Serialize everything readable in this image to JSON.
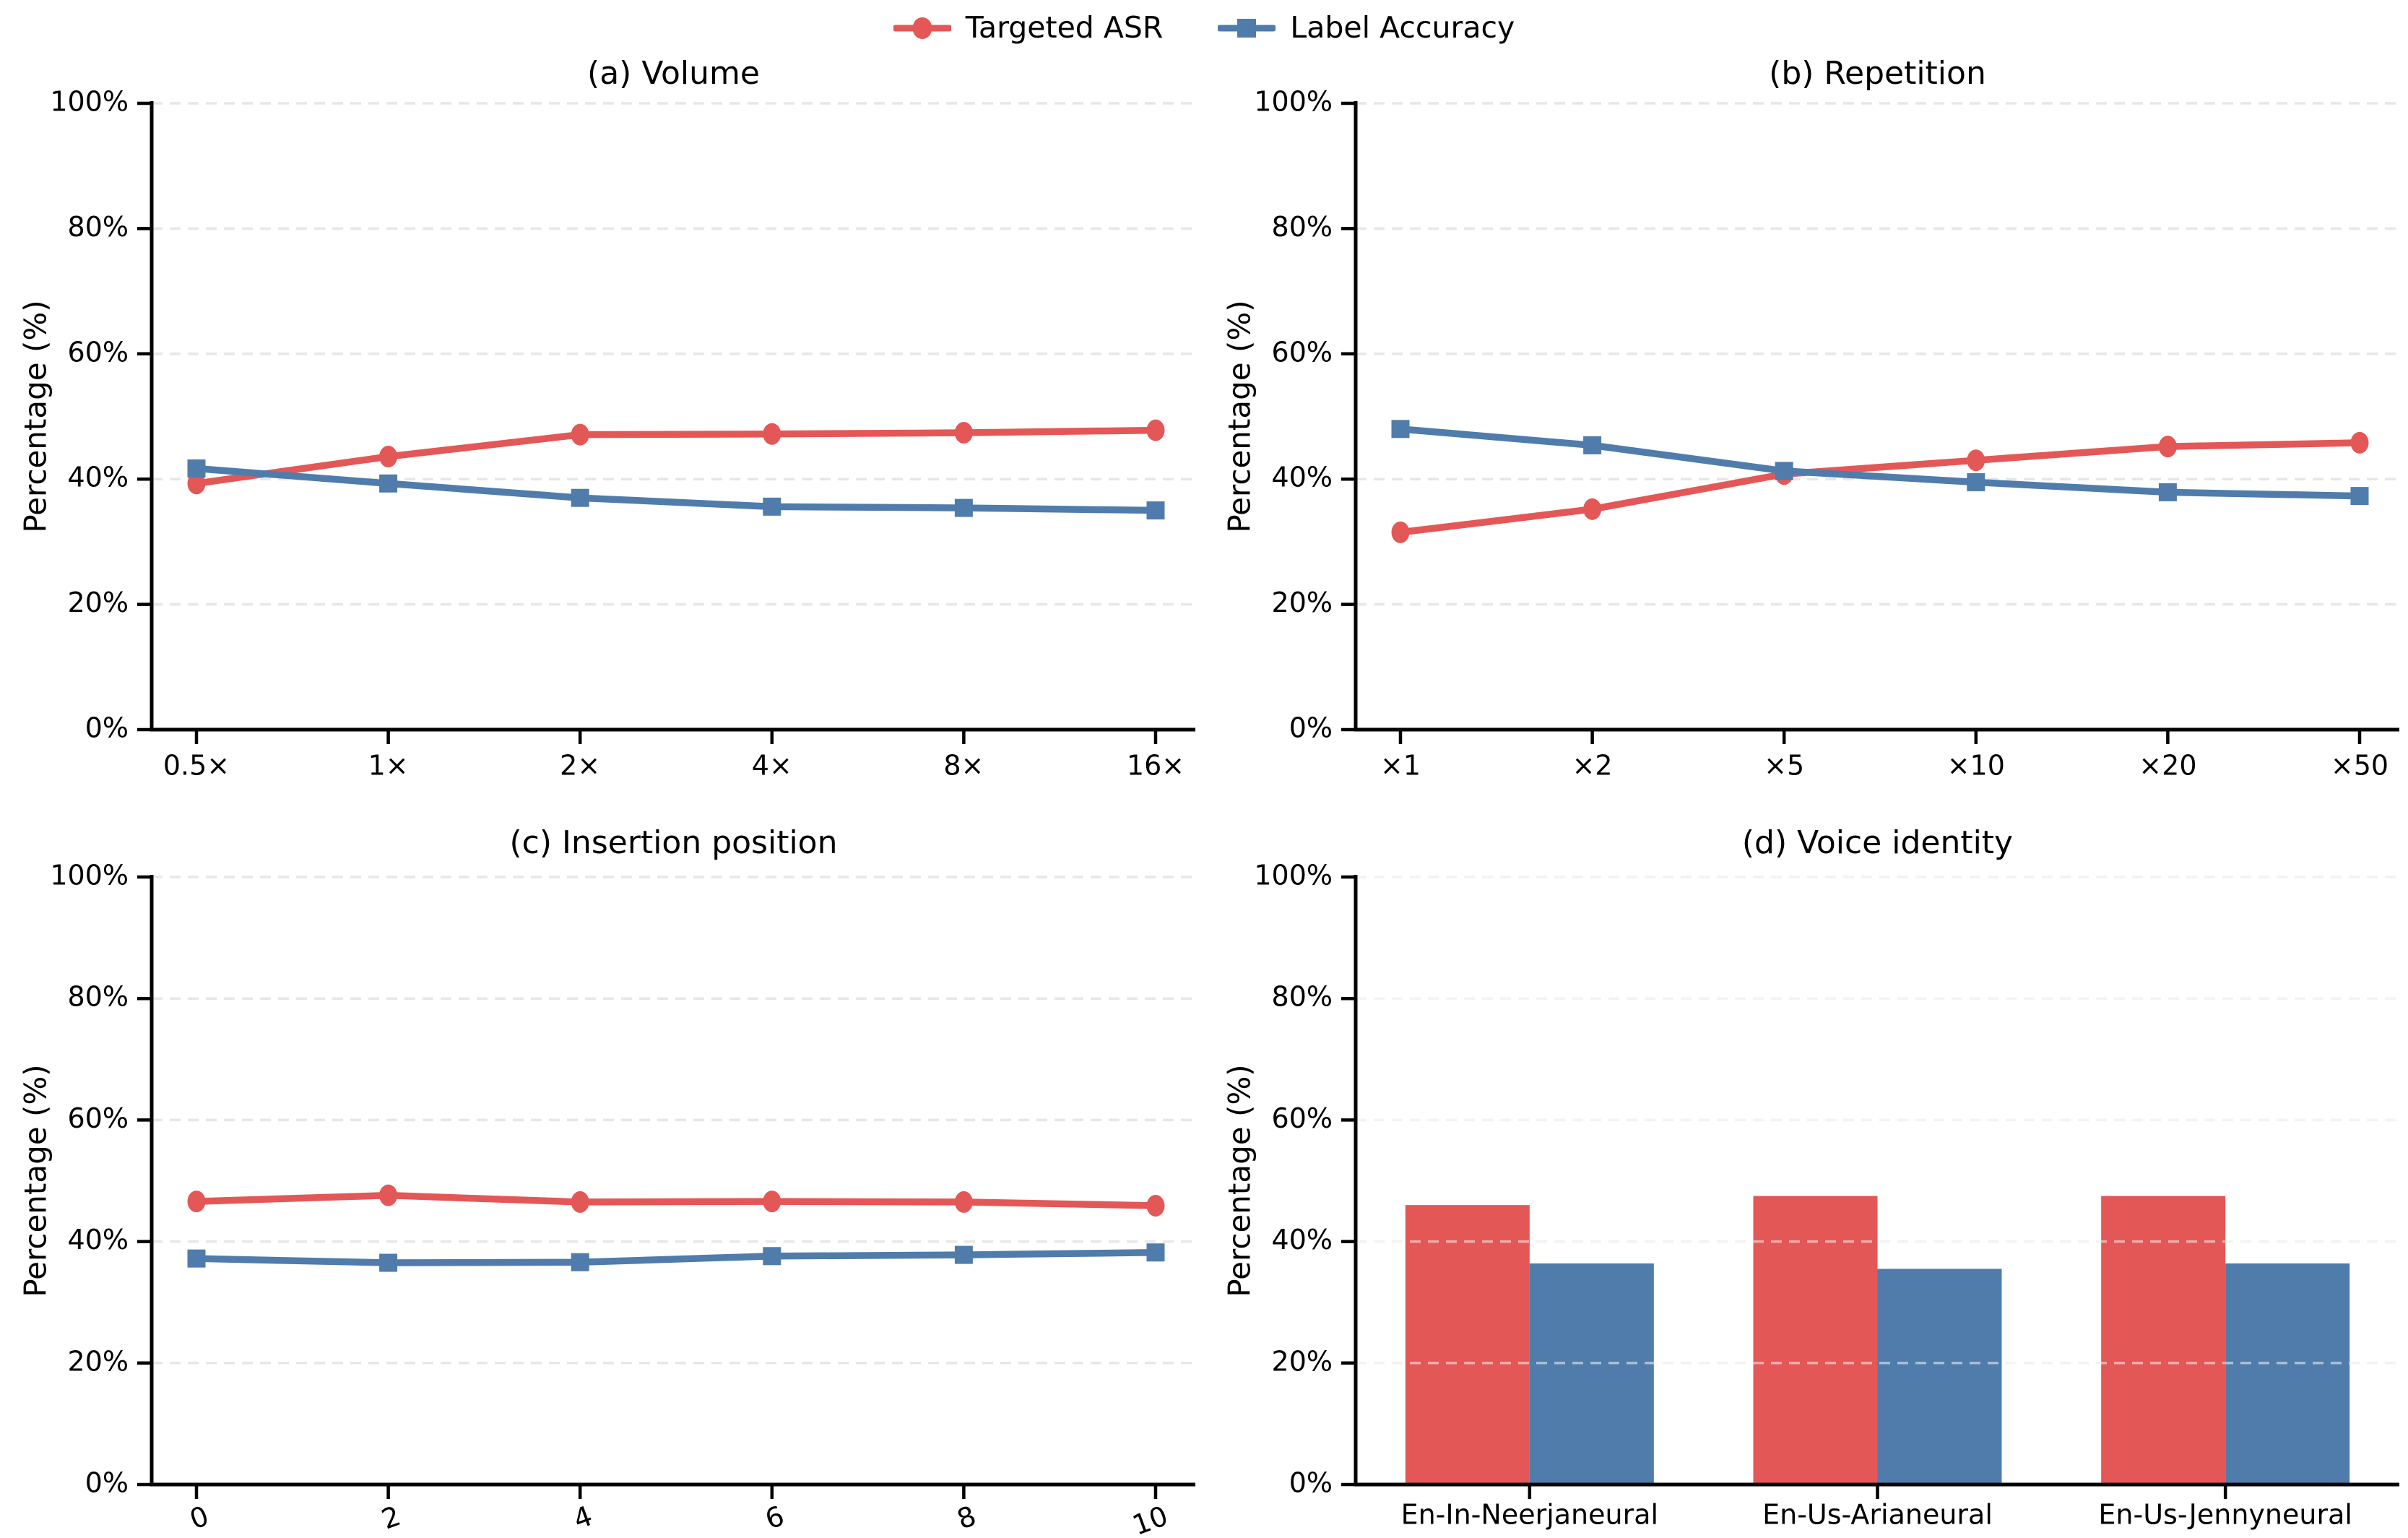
{
  "figure": {
    "background": "#ffffff",
    "axis_color": "#000000",
    "grid_color": "#e7e7e7",
    "legend": {
      "items": [
        {
          "label": "Targeted ASR",
          "color": "#e45757",
          "marker": "circle",
          "icon": "red-circle-line-marker-icon"
        },
        {
          "label": "Label Accuracy",
          "color": "#4f7cab",
          "marker": "square",
          "icon": "blue-square-line-marker-icon"
        }
      ]
    }
  },
  "chart_data": [
    {
      "id": "volume",
      "type": "line",
      "title": "(a) Volume",
      "xlabel": "",
      "ylabel": "Percentage (%)",
      "ylim": [
        0,
        100
      ],
      "grid": "dashed-horizontal",
      "yticks": [
        "0%",
        "20%",
        "40%",
        "60%",
        "80%",
        "100%"
      ],
      "categories": [
        "0.5×",
        "1×",
        "2×",
        "4×",
        "8×",
        "16×"
      ],
      "xtick_rotation": 0,
      "series": [
        {
          "name": "Targeted ASR",
          "color": "#e45757",
          "marker": "circle",
          "values": [
            39.3,
            43.6,
            47.1,
            47.2,
            47.4,
            47.8
          ]
        },
        {
          "name": "Label Accuracy",
          "color": "#4f7cab",
          "marker": "square",
          "values": [
            41.7,
            39.3,
            37.0,
            35.6,
            35.4,
            35.0
          ]
        }
      ]
    },
    {
      "id": "repetition",
      "type": "line",
      "title": "(b) Repetition",
      "xlabel": "",
      "ylabel": "Percentage (%)",
      "ylim": [
        0,
        100
      ],
      "grid": "dashed-horizontal",
      "yticks": [
        "0%",
        "20%",
        "40%",
        "60%",
        "80%",
        "100%"
      ],
      "categories": [
        "×1",
        "×2",
        "×5",
        "×10",
        "×20",
        "×50"
      ],
      "xtick_rotation": 0,
      "series": [
        {
          "name": "Targeted ASR",
          "color": "#e45757",
          "marker": "circle",
          "values": [
            31.5,
            35.2,
            40.8,
            43.0,
            45.2,
            45.8
          ]
        },
        {
          "name": "Label Accuracy",
          "color": "#4f7cab",
          "marker": "square",
          "values": [
            48.0,
            45.4,
            41.3,
            39.5,
            37.9,
            37.3
          ]
        }
      ]
    },
    {
      "id": "insertion-position",
      "type": "line",
      "title": "(c) Insertion position",
      "xlabel": "",
      "ylabel": "Percentage (%)",
      "ylim": [
        0,
        100
      ],
      "grid": "dashed-horizontal",
      "yticks": [
        "0%",
        "20%",
        "40%",
        "60%",
        "80%",
        "100%"
      ],
      "categories": [
        "0",
        "2",
        "4",
        "6",
        "8",
        "10"
      ],
      "xtick_rotation": 20,
      "series": [
        {
          "name": "Targeted ASR",
          "color": "#e45757",
          "marker": "circle",
          "values": [
            46.6,
            47.6,
            46.5,
            46.6,
            46.5,
            45.9
          ]
        },
        {
          "name": "Label Accuracy",
          "color": "#4f7cab",
          "marker": "square",
          "values": [
            37.2,
            36.5,
            36.6,
            37.6,
            37.8,
            38.2
          ]
        }
      ]
    },
    {
      "id": "voice-identity",
      "type": "bar",
      "title": "(d) Voice identity",
      "xlabel": "",
      "ylabel": "Percentage (%)",
      "ylim": [
        0,
        100
      ],
      "grid": "dashed-horizontal",
      "yticks": [
        "0%",
        "20%",
        "40%",
        "60%",
        "80%",
        "100%"
      ],
      "categories": [
        "En-In-Neerjaneural",
        "En-Us-Arianeural",
        "En-Us-Jennyneural"
      ],
      "xtick_rotation": 0,
      "series": [
        {
          "name": "Targeted ASR",
          "color": "#e45757",
          "marker": "circle",
          "values": [
            46.0,
            47.5,
            47.5
          ]
        },
        {
          "name": "Label Accuracy",
          "color": "#4f7cab",
          "marker": "square",
          "values": [
            36.4,
            35.5,
            36.4
          ]
        }
      ]
    }
  ]
}
